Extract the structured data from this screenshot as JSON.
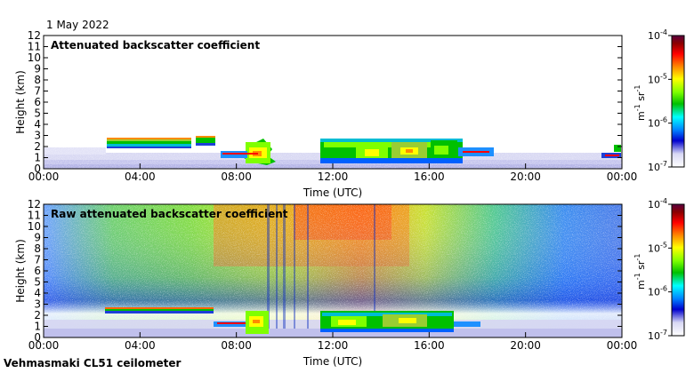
{
  "date_label": "1 May 2022",
  "footer": "Vehmasmaki CL51 ceilometer",
  "colorbar": {
    "ticks": [
      {
        "base": "10",
        "exp": "-4",
        "value": 0.0001
      },
      {
        "base": "10",
        "exp": "-5",
        "value": 1e-05
      },
      {
        "base": "10",
        "exp": "-6",
        "value": 1e-06
      },
      {
        "base": "10",
        "exp": "-7",
        "value": 1e-07
      }
    ],
    "unit_parts": {
      "m": "m",
      "m_exp": "-1",
      "sr": " sr",
      "sr_exp": "-1"
    },
    "scale": "log",
    "colors_top_to_bottom": [
      "#5a0040",
      "#8b0000",
      "#ff0000",
      "#ff8c00",
      "#ffff00",
      "#7fff00",
      "#00c000",
      "#00ffff",
      "#0080ff",
      "#0000cd",
      "#d8d8f4",
      "#ffffff"
    ]
  },
  "chart_data": [
    {
      "type": "heatmap",
      "title": "Attenuated backscatter coefficient",
      "xlabel": "Time (UTC)",
      "ylabel": "Height (km)",
      "xticks": [
        "00:00",
        "04:00",
        "08:00",
        "12:00",
        "16:00",
        "20:00",
        "00:00"
      ],
      "xlim_hours": [
        0,
        24
      ],
      "ylim": [
        0,
        12
      ],
      "yticks": [
        0,
        1,
        2,
        3,
        4,
        5,
        6,
        7,
        8,
        9,
        10,
        11,
        12
      ],
      "color_scale": "log",
      "features": [
        {
          "kind": "cloud_layer",
          "t_start_h": 2.6,
          "t_end_h": 6.1,
          "z_bottom_km": 2.0,
          "z_top_km": 2.8
        },
        {
          "kind": "cloud_layer",
          "t_start_h": 6.5,
          "t_end_h": 7.2,
          "z_bottom_km": 2.2,
          "z_top_km": 2.9
        },
        {
          "kind": "cloud_layer",
          "t_start_h": 8.5,
          "t_end_h": 9.6,
          "z_bottom_km": 0.2,
          "z_top_km": 2.5
        },
        {
          "kind": "cloud_layer",
          "t_start_h": 11.4,
          "t_end_h": 17.6,
          "z_bottom_km": 0.3,
          "z_top_km": 2.6
        },
        {
          "kind": "boundary_layer",
          "t_start_h": 0,
          "t_end_h": 24,
          "z_top_km": 1.4
        }
      ]
    },
    {
      "type": "heatmap",
      "title": "Raw attenuated backscatter coefficient",
      "xlabel": "Time (UTC)",
      "ylabel": "Height (km)",
      "xticks": [
        "00:00",
        "04:00",
        "08:00",
        "12:00",
        "16:00",
        "20:00",
        "00:00"
      ],
      "xlim_hours": [
        0,
        24
      ],
      "ylim": [
        0,
        12
      ],
      "yticks": [
        0,
        1,
        2,
        3,
        4,
        5,
        6,
        7,
        8,
        9,
        10,
        11,
        12
      ],
      "color_scale": "log",
      "features": [
        {
          "kind": "noise_field",
          "t_start_h": 0,
          "t_end_h": 24,
          "z_bottom_km": 2.5,
          "z_top_km": 12
        },
        {
          "kind": "cloud_layer",
          "t_start_h": 2.6,
          "t_end_h": 7.0,
          "z_bottom_km": 2.2,
          "z_top_km": 2.7
        },
        {
          "kind": "cloud_layer",
          "t_start_h": 8.0,
          "t_end_h": 9.6,
          "z_bottom_km": 0.2,
          "z_top_km": 2.5
        },
        {
          "kind": "cloud_layer",
          "t_start_h": 11.4,
          "t_end_h": 17.6,
          "z_bottom_km": 0.3,
          "z_top_km": 2.6
        }
      ]
    }
  ]
}
